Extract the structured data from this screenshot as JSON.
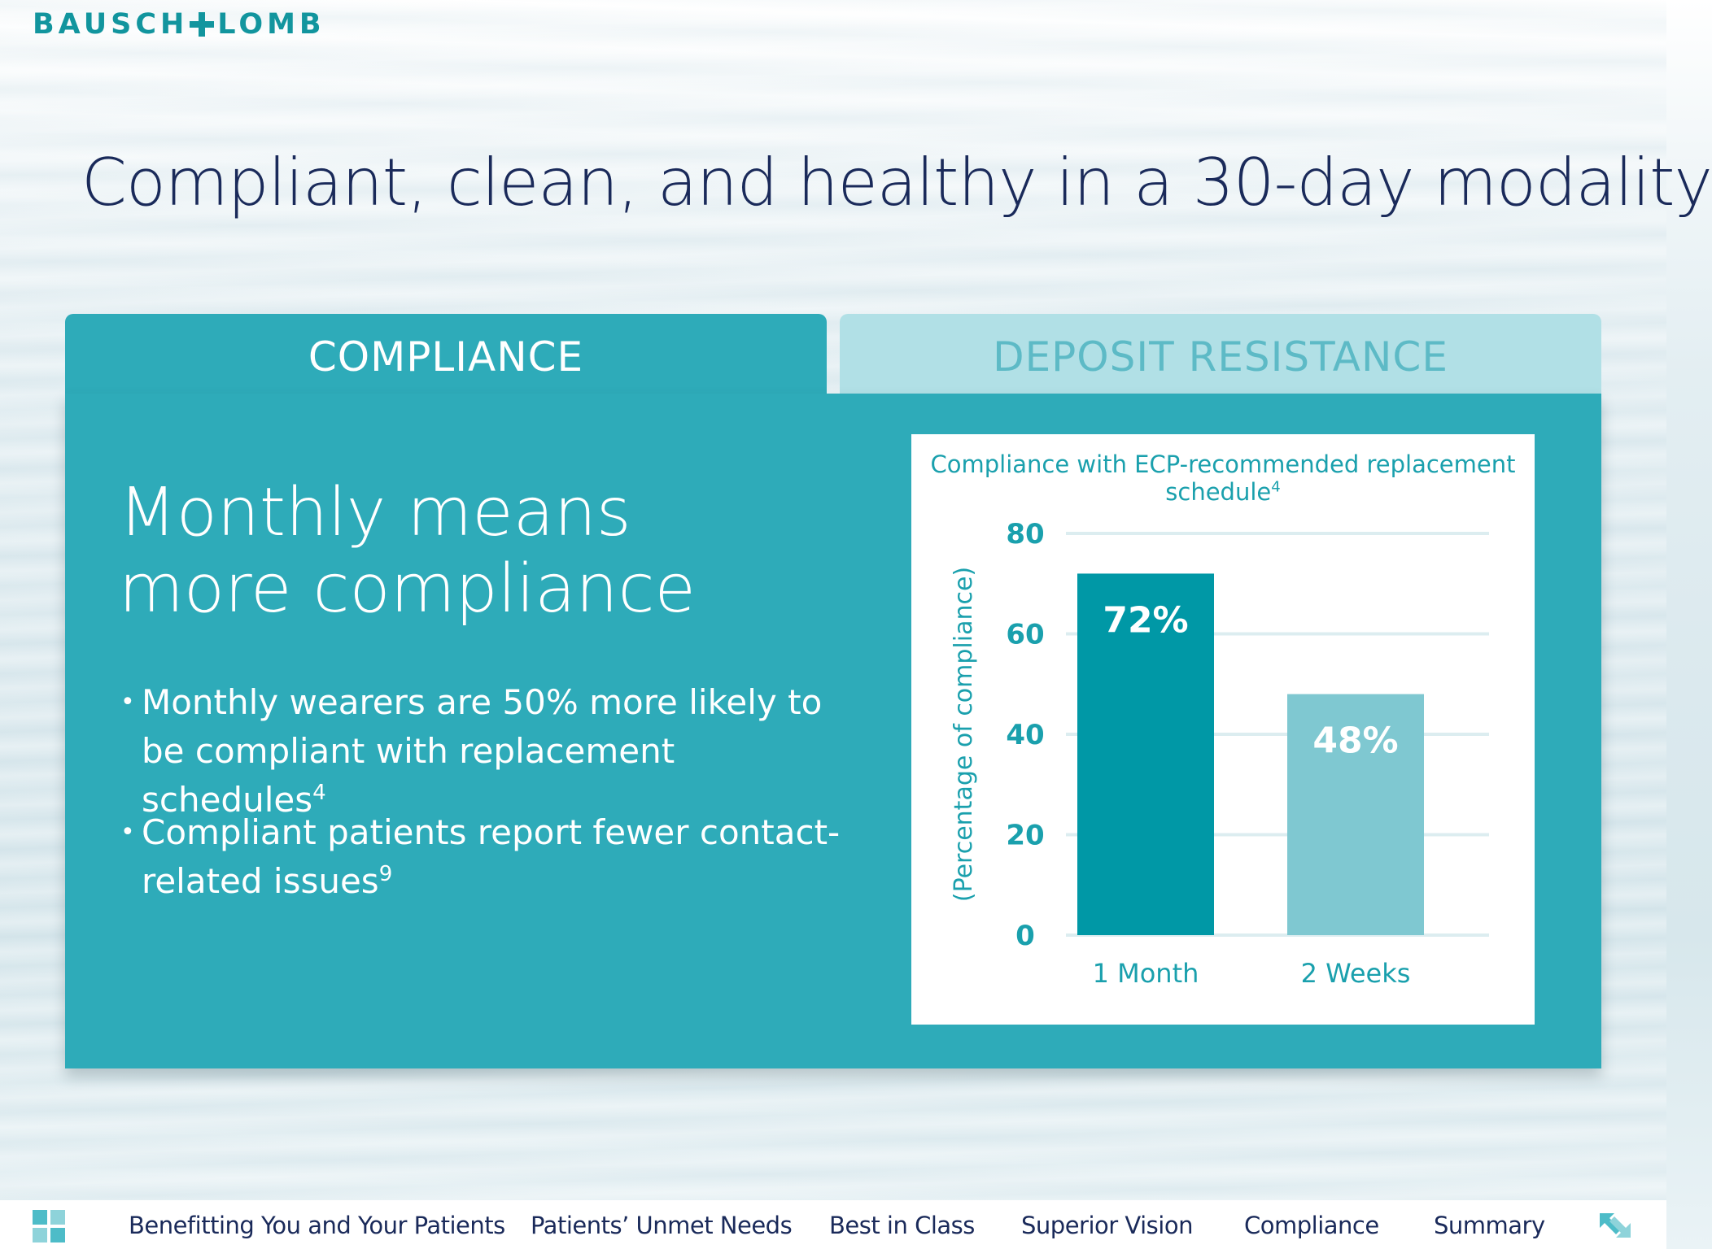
{
  "brand": {
    "left": "BAUSCH",
    "right": "LOMB"
  },
  "headline": "Compliant, clean, and healthy in a 30-day modality",
  "tabs": [
    {
      "label": "COMPLIANCE",
      "active": true
    },
    {
      "label": "DEPOSIT RESISTANCE",
      "active": false
    }
  ],
  "panel": {
    "title_line1": "Monthly means",
    "title_line2": "more compliance",
    "bullets": [
      {
        "text": "Monthly wearers are 50% more likely to be compliant with replacement schedules",
        "ref": "4"
      },
      {
        "text": "Compliant patients report fewer contact-related issues",
        "ref": "9"
      }
    ]
  },
  "chart_data": {
    "type": "bar",
    "title": "Compliance with ECP-recommended replacement schedule",
    "title_ref": "4",
    "ylabel": "(Percentage of compliance)",
    "xlabel": "",
    "ylim": [
      0,
      80
    ],
    "yticks": [
      0,
      20,
      40,
      60,
      80
    ],
    "categories": [
      "1 Month",
      "2 Weeks"
    ],
    "values": [
      72,
      48
    ],
    "value_labels": [
      "72%",
      "48%"
    ],
    "bar_colors": [
      "#0098a6",
      "#7fc8d1"
    ],
    "grid": true,
    "legend": "none"
  },
  "colors": {
    "brand": "#12959e",
    "panel": "#2eabb9",
    "tab_inactive": "#b1e0e6",
    "headline": "#1a2a5a"
  },
  "nav": {
    "home_icon": "grid-icon",
    "items": [
      "Benefitting You and Your Patients",
      "Patients’ Unmet Needs",
      "Best in Class",
      "Superior Vision",
      "Compliance",
      "Summary"
    ],
    "fullscreen_icon": "expand-arrows-icon"
  }
}
